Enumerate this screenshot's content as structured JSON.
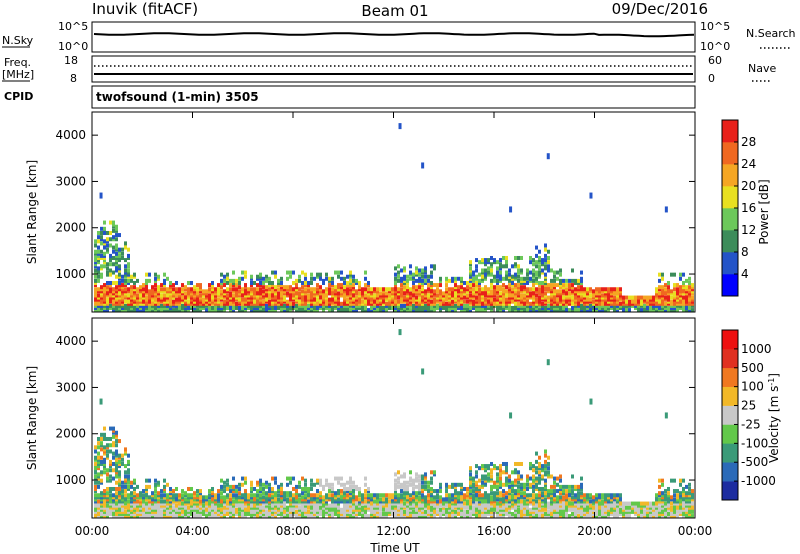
{
  "header": {
    "station": "Inuvik (fitACF)",
    "beam": "Beam 01",
    "date": "09/Dec/2016"
  },
  "top_panels": {
    "nsky_label": "N.Sky",
    "nsky_ticks": [
      "10^5",
      "10^0"
    ],
    "nsearch_label": "N.Search",
    "nsearch_ticks": [
      "10^5",
      "10^0"
    ],
    "freq_label": "Freq.",
    "freq_unit": "[MHz]",
    "freq_ticks": [
      "18",
      "8"
    ],
    "nave_label": "Nave",
    "nave_ticks": [
      "60",
      "0"
    ],
    "cpid_label": "CPID",
    "cpid_value": "twofsound (1-min) 3505"
  },
  "chart_data": [
    {
      "type": "heatmap",
      "name": "power",
      "ylabel": "Slant Range [km]",
      "y_ticks": [
        "4000",
        "3000",
        "2000",
        "1000"
      ],
      "y_range": [
        180,
        4500
      ],
      "x_ticks": [
        "00:00",
        "04:00",
        "08:00",
        "12:00",
        "16:00",
        "20:00",
        "00:00"
      ],
      "x_range_hours": [
        0,
        24
      ],
      "colorbar": {
        "label": "Power [dB]",
        "ticks": [
          "28",
          "24",
          "20",
          "16",
          "12",
          "8",
          "4"
        ],
        "range": [
          0,
          32
        ],
        "colors": [
          "#0000ff",
          "#2454c8",
          "#3c8c5a",
          "#6cc85a",
          "#e8e020",
          "#f5a623",
          "#f06820",
          "#e8201a"
        ]
      }
    },
    {
      "type": "heatmap",
      "name": "velocity",
      "ylabel": "Slant Range [km]",
      "y_ticks": [
        "4000",
        "3000",
        "2000",
        "1000"
      ],
      "y_range": [
        180,
        4500
      ],
      "x_ticks": [
        "00:00",
        "04:00",
        "08:00",
        "12:00",
        "16:00",
        "20:00",
        "00:00"
      ],
      "x_range_hours": [
        0,
        24
      ],
      "colorbar": {
        "label": "Velocity [m s",
        "label_sup": "-1",
        "label_tail": "]",
        "ticks": [
          "1000",
          "500",
          "100",
          "25",
          "-25",
          "-100",
          "-500",
          "-1000"
        ],
        "colors": [
          "#1c2ca0",
          "#2a6ab8",
          "#3a9a78",
          "#62c84a",
          "#c8c8c8",
          "#f2b828",
          "#f07820",
          "#e03020",
          "#ee1010"
        ]
      }
    }
  ],
  "xlabel": "Time UT"
}
